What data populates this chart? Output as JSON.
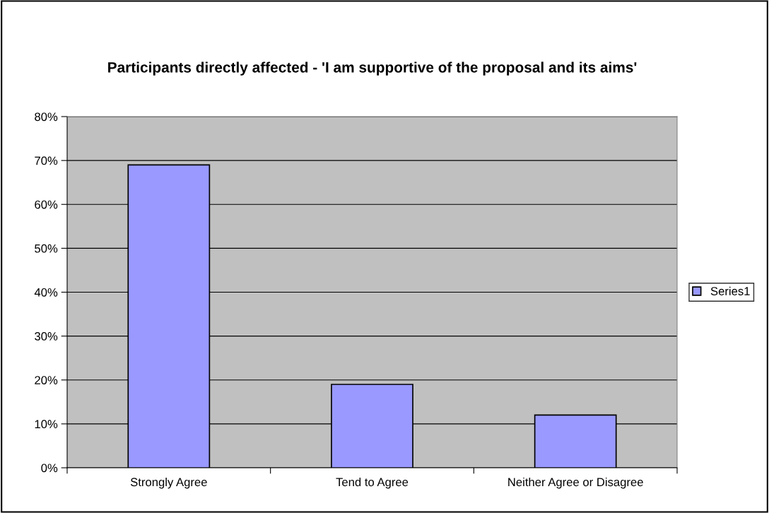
{
  "chart_data": {
    "type": "bar",
    "title": "Participants directly affected - 'I am supportive of the proposal and its aims'",
    "categories": [
      "Strongly Agree",
      "Tend to Agree",
      "Neither Agree or Disagree"
    ],
    "series": [
      {
        "name": "Series1",
        "color": "#9999ff",
        "values": [
          69,
          19,
          12
        ]
      }
    ],
    "ylim": [
      0,
      80
    ],
    "yticks": [
      {
        "value": 0,
        "label": "0%"
      },
      {
        "value": 10,
        "label": "10%"
      },
      {
        "value": 20,
        "label": "20%"
      },
      {
        "value": 30,
        "label": "30%"
      },
      {
        "value": 40,
        "label": "40%"
      },
      {
        "value": 50,
        "label": "50%"
      },
      {
        "value": 60,
        "label": "60%"
      },
      {
        "value": 70,
        "label": "70%"
      },
      {
        "value": 80,
        "label": "80%"
      }
    ],
    "grid": "y",
    "legend": "right"
  }
}
